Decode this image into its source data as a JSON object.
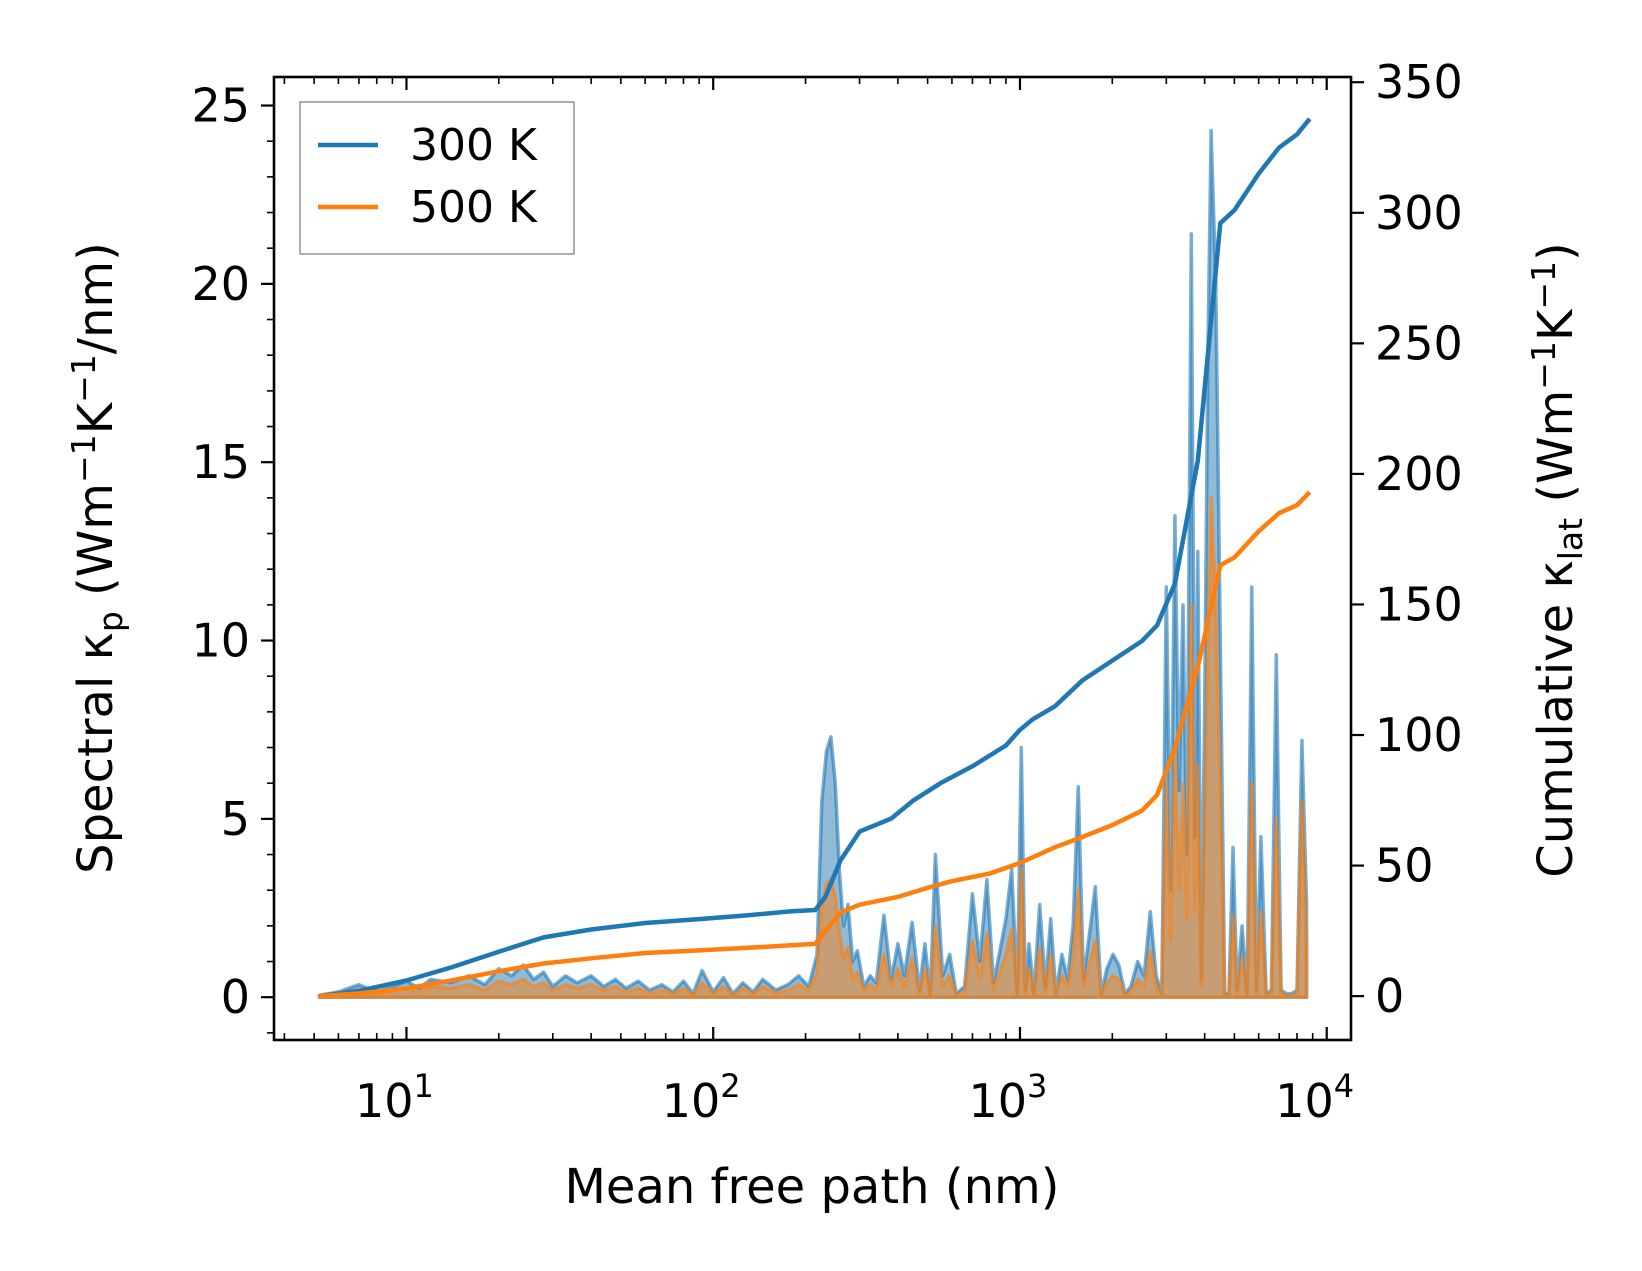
{
  "chart_data": {
    "type": "line",
    "xlabel": "Mean free path (nm)",
    "ylabel_left": {
      "main": "Spectral κ",
      "sub": "p",
      "unit_open": " (Wm",
      "sup1": "−1",
      "mid": "K",
      "sup2": "−1",
      "tail": "/nm)"
    },
    "ylabel_right": {
      "main": "Cumulative κ",
      "sub": "lat",
      "unit_open": " (Wm",
      "sup1": "−1",
      "mid": "K",
      "sup2": "−1",
      "tail": ")"
    },
    "xscale": "log",
    "xlim": [
      3.7,
      12000
    ],
    "ylim_left": [
      -1.2,
      25.8
    ],
    "ylim_right": [
      -16.8,
      352
    ],
    "xticks": [
      {
        "value": 10,
        "base": "10",
        "exp": "1"
      },
      {
        "value": 100,
        "base": "10",
        "exp": "2"
      },
      {
        "value": 1000,
        "base": "10",
        "exp": "3"
      },
      {
        "value": 10000,
        "base": "10",
        "exp": "4"
      }
    ],
    "yticks_left": [
      "0",
      "5",
      "10",
      "15",
      "20",
      "25"
    ],
    "yticks_right": [
      "0",
      "50",
      "100",
      "150",
      "200",
      "250",
      "300",
      "350"
    ],
    "legend_position": "upper-left",
    "series": [
      {
        "name": "300 K",
        "color": "#1f77b4",
        "cumulative": {
          "x": [
            5.2,
            7,
            10,
            14,
            20,
            28,
            40,
            60,
            90,
            130,
            180,
            215,
            232,
            260,
            300,
            380,
            450,
            550,
            700,
            900,
            1000,
            1100,
            1300,
            1600,
            2000,
            2500,
            2800,
            3200,
            3800,
            4500,
            5000,
            6000,
            7000,
            8000,
            8800
          ],
          "y": [
            0,
            2,
            6,
            11,
            17,
            22.5,
            25.5,
            28,
            29.5,
            31,
            32.5,
            33,
            38,
            52,
            63,
            68,
            75,
            81.5,
            88,
            96,
            102,
            106,
            111,
            121,
            128.5,
            136,
            142,
            158,
            205,
            296,
            301,
            315,
            325,
            330,
            336
          ]
        },
        "spectral": {
          "x": [
            5.2,
            6,
            7,
            8,
            9,
            10,
            11,
            12,
            14,
            16,
            18,
            20,
            22,
            24,
            26,
            28,
            30,
            33,
            36,
            40,
            44,
            48,
            52,
            57,
            62,
            68,
            74,
            80,
            86,
            92,
            100,
            108,
            116,
            125,
            135,
            145,
            160,
            175,
            190,
            205,
            218,
            226,
            234,
            242,
            250,
            258,
            266,
            275,
            285,
            295,
            310,
            325,
            340,
            360,
            380,
            400,
            420,
            445,
            470,
            490,
            510,
            530,
            560,
            590,
            620,
            660,
            700,
            740,
            780,
            820,
            860,
            900,
            940,
            980,
            1010,
            1040,
            1070,
            1110,
            1160,
            1210,
            1260,
            1310,
            1370,
            1430,
            1490,
            1550,
            1610,
            1680,
            1760,
            1840,
            1920,
            2010,
            2100,
            2200,
            2300,
            2420,
            2540,
            2660,
            2780,
            2900,
            3000,
            3100,
            3200,
            3300,
            3400,
            3500,
            3620,
            3720,
            3800,
            3900,
            4000,
            4100,
            4200,
            4350,
            4500,
            4650,
            4800,
            4950,
            5100,
            5300,
            5500,
            5700,
            5900,
            6100,
            6350,
            6600,
            6850,
            7100,
            7400,
            7700,
            8000,
            8300,
            8600
          ],
          "y": [
            0.05,
            0.15,
            0.35,
            0.15,
            0.3,
            0.45,
            0.25,
            0.5,
            0.4,
            0.6,
            0.35,
            0.8,
            0.6,
            0.9,
            0.5,
            0.7,
            0.3,
            0.6,
            0.4,
            0.6,
            0.3,
            0.5,
            0.25,
            0.45,
            0.2,
            0.35,
            0.15,
            0.45,
            0.1,
            0.75,
            0.15,
            0.55,
            0.1,
            0.4,
            0.15,
            0.5,
            0.2,
            0.35,
            0.6,
            0.3,
            1.2,
            5.5,
            6.9,
            7.3,
            6.0,
            3.5,
            2.0,
            2.6,
            1.0,
            1.3,
            0.3,
            0.6,
            0.4,
            2.3,
            0.5,
            1.5,
            0.6,
            2.1,
            0.2,
            1.5,
            0.1,
            4.0,
            0.6,
            1.2,
            0.1,
            0.3,
            2.9,
            1.0,
            3.3,
            0.4,
            1.3,
            2.2,
            3.6,
            0.1,
            7.0,
            0.2,
            1.5,
            0.1,
            2.6,
            0.3,
            2.2,
            0.1,
            1.2,
            0.5,
            2.0,
            5.9,
            0.5,
            1.7,
            3.1,
            0.1,
            0.8,
            1.2,
            0.9,
            0.1,
            0.3,
            1.0,
            0.6,
            2.4,
            0.6,
            0.1,
            11.5,
            3.0,
            13.5,
            5.8,
            11.0,
            4.0,
            21.4,
            4.5,
            12.5,
            0.5,
            8.0,
            18.0,
            24.3,
            20.0,
            10.0,
            0.1,
            0.1,
            4.2,
            0.2,
            2.0,
            0.1,
            11.5,
            0.2,
            4.5,
            0.1,
            0.2,
            9.6,
            0.2,
            0.1,
            0.1,
            0.2,
            7.2,
            2.6
          ],
          "alpha": 0.5
        }
      },
      {
        "name": "500 K",
        "color": "#ff7f0e",
        "cumulative": {
          "x": [
            5.2,
            7,
            10,
            14,
            20,
            28,
            40,
            60,
            90,
            130,
            180,
            215,
            232,
            260,
            300,
            400,
            500,
            600,
            800,
            1000,
            1300,
            1600,
            2000,
            2500,
            2800,
            3200,
            3800,
            4500,
            5000,
            6000,
            7000,
            8000,
            8800
          ],
          "y": [
            0,
            1,
            3,
            6,
            9.5,
            12.5,
            14.5,
            16.5,
            17.5,
            18.5,
            19.5,
            20,
            25,
            32,
            35,
            38,
            41.5,
            44,
            47,
            51,
            57,
            61,
            65.5,
            71,
            77,
            95,
            126,
            165,
            168,
            178,
            185,
            188,
            193
          ]
        },
        "spectral": {
          "x": [
            5.2,
            6,
            7,
            8,
            9,
            10,
            11,
            12,
            14,
            16,
            18,
            20,
            22,
            24,
            26,
            28,
            30,
            33,
            36,
            40,
            44,
            48,
            52,
            57,
            62,
            68,
            74,
            80,
            86,
            92,
            100,
            108,
            116,
            125,
            135,
            145,
            160,
            175,
            190,
            205,
            218,
            226,
            234,
            242,
            250,
            258,
            266,
            275,
            285,
            295,
            310,
            325,
            340,
            360,
            380,
            400,
            420,
            445,
            470,
            490,
            510,
            530,
            560,
            590,
            620,
            660,
            700,
            740,
            780,
            820,
            860,
            900,
            940,
            980,
            1010,
            1040,
            1070,
            1110,
            1160,
            1210,
            1260,
            1310,
            1370,
            1430,
            1490,
            1550,
            1610,
            1680,
            1760,
            1840,
            1920,
            2010,
            2100,
            2200,
            2300,
            2420,
            2540,
            2660,
            2780,
            2900,
            3000,
            3100,
            3200,
            3300,
            3400,
            3500,
            3620,
            3720,
            3800,
            3900,
            4000,
            4100,
            4200,
            4350,
            4500,
            4650,
            4800,
            4950,
            5100,
            5300,
            5500,
            5700,
            5900,
            6100,
            6350,
            6600,
            6850,
            7100,
            7400,
            7700,
            8000,
            8300,
            8600
          ],
          "y": [
            0.03,
            0.08,
            0.2,
            0.1,
            0.18,
            0.25,
            0.15,
            0.3,
            0.25,
            0.35,
            0.2,
            0.45,
            0.35,
            0.5,
            0.3,
            0.4,
            0.2,
            0.35,
            0.25,
            0.35,
            0.2,
            0.3,
            0.15,
            0.25,
            0.12,
            0.2,
            0.1,
            0.25,
            0.06,
            0.4,
            0.1,
            0.3,
            0.06,
            0.25,
            0.1,
            0.3,
            0.12,
            0.2,
            0.35,
            0.2,
            0.7,
            2.5,
            3.2,
            3.3,
            2.8,
            1.8,
            1.1,
            1.4,
            0.5,
            0.7,
            0.2,
            0.35,
            0.2,
            1.2,
            0.3,
            0.8,
            0.3,
            1.1,
            0.1,
            0.8,
            0.05,
            2.0,
            0.3,
            0.6,
            0.05,
            0.15,
            1.6,
            0.5,
            1.8,
            0.2,
            0.7,
            1.2,
            1.9,
            0.05,
            3.6,
            0.1,
            0.8,
            0.05,
            1.4,
            0.15,
            1.2,
            0.05,
            0.6,
            0.3,
            1.1,
            3.0,
            0.3,
            0.9,
            1.6,
            0.05,
            0.4,
            0.6,
            0.5,
            0.05,
            0.15,
            0.5,
            0.3,
            1.3,
            0.3,
            0.05,
            6.0,
            1.6,
            7.0,
            3.0,
            6.0,
            2.2,
            11.0,
            2.4,
            6.5,
            0.3,
            4.5,
            10.0,
            14.0,
            11.0,
            5.5,
            0.05,
            0.05,
            2.3,
            0.1,
            1.1,
            0.05,
            6.0,
            0.1,
            2.4,
            0.05,
            0.1,
            5.0,
            0.1,
            0.05,
            0.05,
            0.1,
            5.5,
            1.4
          ],
          "alpha": 0.5
        }
      }
    ]
  }
}
